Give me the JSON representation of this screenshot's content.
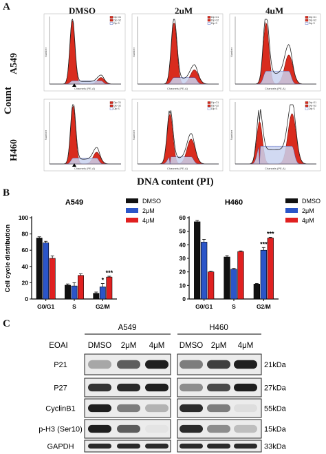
{
  "panelA": {
    "letter": "A",
    "columns": [
      "DMSO",
      "2μM",
      "4μM"
    ],
    "rows": [
      "A549",
      "H460"
    ],
    "y_label": "Count",
    "x_label": "DNA content (PI)",
    "legend": [
      "Dip G1",
      "Dip G2",
      "Dip S"
    ],
    "histogram_axis_x": "Channels (PE-A)",
    "histogram_axis_y": "Number"
  },
  "panelB": {
    "letter": "B",
    "legend": [
      "DMSO",
      "2μM",
      "4μM"
    ]
  },
  "panelC": {
    "letter": "C",
    "treatment_label": "EOAI",
    "cell_lines": [
      "A549",
      "H460"
    ],
    "lanes": [
      "DMSO",
      "2μM",
      "4μM",
      "DMSO",
      "2μM",
      "4μM"
    ],
    "proteins": [
      {
        "name": "P21",
        "size": "21kDa",
        "intensity": [
          0.45,
          0.7,
          0.95,
          0.6,
          0.8,
          0.95
        ]
      },
      {
        "name": "P27",
        "size": "27kDa",
        "intensity": [
          0.85,
          0.9,
          0.95,
          0.55,
          0.75,
          0.95
        ]
      },
      {
        "name": "CyclinB1",
        "size": "55kDa",
        "intensity": [
          0.95,
          0.6,
          0.4,
          0.9,
          0.6,
          0.15
        ]
      },
      {
        "name": "p-H3 (Ser10)",
        "size": "15kDa",
        "intensity": [
          0.95,
          0.7,
          0.1,
          0.9,
          0.55,
          0.35
        ]
      },
      {
        "name": "GAPDH",
        "size": "33kDa",
        "intensity": [
          0.9,
          0.9,
          0.9,
          0.9,
          0.9,
          0.9
        ]
      }
    ]
  },
  "colors": {
    "dmso": "#111111",
    "low": "#2b55c8",
    "high": "#e02020",
    "histogram_red": "#d92c1e"
  },
  "chart_data": [
    {
      "type": "bar",
      "title": "A549",
      "ylabel": "Cell cycle distribution",
      "categories": [
        "G0/G1",
        "S",
        "G2/M"
      ],
      "ylim": [
        0,
        100
      ],
      "yticks": [
        0,
        20,
        40,
        60,
        80,
        100
      ],
      "series": [
        {
          "name": "DMSO",
          "values": [
            75,
            17,
            7
          ],
          "errors": [
            1.5,
            1.5,
            1.5
          ]
        },
        {
          "name": "2μM",
          "values": [
            69,
            16,
            15
          ],
          "errors": [
            2,
            4,
            4
          ]
        },
        {
          "name": "4μM",
          "values": [
            50,
            29,
            27
          ],
          "errors": [
            3,
            2,
            1
          ]
        }
      ],
      "annotations": [
        {
          "category": "G2/M",
          "series": "2μM",
          "text": "*"
        },
        {
          "category": "G2/M",
          "series": "4μM",
          "text": "***"
        }
      ],
      "legend_position": "top-right"
    },
    {
      "type": "bar",
      "title": "H460",
      "categories": [
        "G0/G1",
        "S",
        "G2/M"
      ],
      "ylim": [
        0,
        60
      ],
      "yticks": [
        0,
        10,
        20,
        30,
        40,
        50,
        60
      ],
      "series": [
        {
          "name": "DMSO",
          "values": [
            57,
            31,
            11
          ],
          "errors": [
            1,
            1,
            0.5
          ]
        },
        {
          "name": "2μM",
          "values": [
            42,
            22,
            36
          ],
          "errors": [
            2,
            0.5,
            2
          ]
        },
        {
          "name": "4μM",
          "values": [
            20,
            35,
            45
          ],
          "errors": [
            0.5,
            0.5,
            0.5
          ]
        }
      ],
      "annotations": [
        {
          "category": "G2/M",
          "series": "2μM",
          "text": "***"
        },
        {
          "category": "G2/M",
          "series": "4μM",
          "text": "***"
        }
      ],
      "legend_position": "top-right"
    }
  ]
}
